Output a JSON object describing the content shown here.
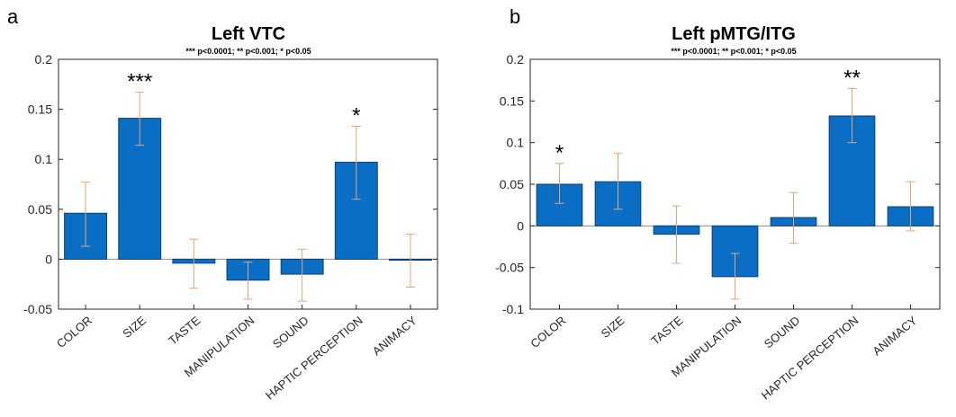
{
  "figure": {
    "panels": [
      "a",
      "b"
    ],
    "significance_note": "*** p<0.0001; ** p<0.001; * p<0.05"
  },
  "colors": {
    "bar_fill": "#0a6ec4",
    "bar_stroke": "#0d3f73",
    "error_bar": "#e2a47f",
    "axis": "#262626",
    "zero_line": "#8c8c8c"
  },
  "chart_data": [
    {
      "panel_label": "a",
      "type": "bar",
      "title": "Left VTC",
      "subtitle": "*** p<0.0001; ** p<0.001; * p<0.05",
      "categories": [
        "COLOR",
        "SIZE",
        "TASTE",
        "MANIPULATION",
        "SOUND",
        "HAPTIC PERCEPTION",
        "ANIMACY"
      ],
      "values": [
        0.046,
        0.141,
        -0.004,
        -0.021,
        -0.015,
        0.097,
        -0.001
      ],
      "error_low": [
        0.013,
        0.114,
        -0.029,
        -0.04,
        -0.042,
        0.06,
        -0.028
      ],
      "error_high": [
        0.077,
        0.167,
        0.02,
        -0.003,
        0.01,
        0.133,
        0.025
      ],
      "significance": [
        "",
        "***",
        "",
        "",
        "",
        "*",
        ""
      ],
      "ylim": [
        -0.05,
        0.2
      ],
      "yticks": [
        -0.05,
        0,
        0.05,
        0.1,
        0.15,
        0.2
      ],
      "ytick_labels": [
        "-0.05",
        "0",
        "0.05",
        "0.1",
        "0.15",
        "0.2"
      ],
      "xlabel": "",
      "ylabel": "",
      "grid": false
    },
    {
      "panel_label": "b",
      "type": "bar",
      "title": "Left pMTG/ITG",
      "subtitle": "*** p<0.0001; ** p<0.001; * p<0.05",
      "categories": [
        "COLOR",
        "SIZE",
        "TASTE",
        "MANIPULATION",
        "SOUND",
        "HAPTIC PERCEPTION",
        "ANIMACY"
      ],
      "values": [
        0.05,
        0.053,
        -0.01,
        -0.061,
        0.01,
        0.132,
        0.023
      ],
      "error_low": [
        0.027,
        0.02,
        -0.045,
        -0.088,
        -0.021,
        0.1,
        -0.006
      ],
      "error_high": [
        0.075,
        0.087,
        0.024,
        -0.033,
        0.04,
        0.165,
        0.053
      ],
      "significance": [
        "*",
        "",
        "",
        "",
        "",
        "**",
        ""
      ],
      "ylim": [
        -0.1,
        0.2
      ],
      "yticks": [
        -0.1,
        -0.05,
        0,
        0.05,
        0.1,
        0.15,
        0.2
      ],
      "ytick_labels": [
        "-0.1",
        "-0.05",
        "0",
        "0.05",
        "0.1",
        "0.15",
        "0.2"
      ],
      "xlabel": "",
      "ylabel": "",
      "grid": false
    }
  ]
}
